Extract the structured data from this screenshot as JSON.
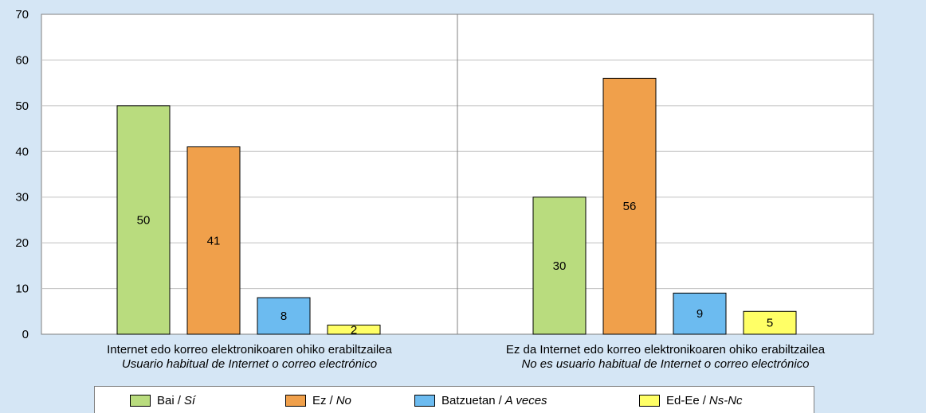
{
  "chart_data": {
    "type": "bar",
    "ylim": [
      0,
      70
    ],
    "yticks": [
      0,
      10,
      20,
      30,
      40,
      50,
      60,
      70
    ],
    "grid": true,
    "categories": [
      {
        "label_eu": "Internet edo korreo elektronikoaren ohiko erabiltzailea",
        "label_es": "Usuario habitual de Internet o correo electrónico"
      },
      {
        "label_eu": "Ez da Internet edo korreo elektronikoaren ohiko erabiltzailea",
        "label_es": "No es usuario habitual de Internet o correo electrónico"
      }
    ],
    "series": [
      {
        "name_eu": "Bai",
        "name_es": "Sí",
        "color": "#b9dc7e",
        "values": [
          50,
          30
        ]
      },
      {
        "name_eu": "Ez",
        "name_es": "No",
        "color": "#f0a04b",
        "values": [
          41,
          56
        ]
      },
      {
        "name_eu": "Batzuetan",
        "name_es": "A veces",
        "color": "#6cbbf0",
        "values": [
          8,
          9
        ]
      },
      {
        "name_eu": "Ed-Ee",
        "name_es": "Ns-Nc",
        "color": "#ffff66",
        "values": [
          2,
          5
        ]
      }
    ],
    "legend_position": "bottom"
  }
}
